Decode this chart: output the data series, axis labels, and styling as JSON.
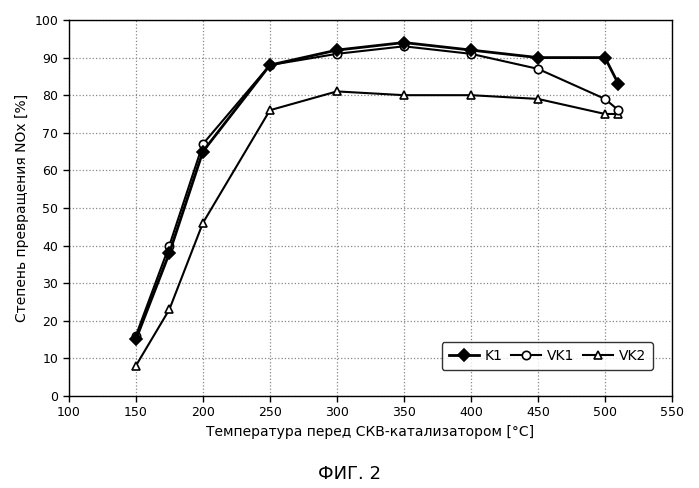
{
  "title": "ФИГ. 2",
  "xlabel": "Температура перед СКВ-катализатором [°C]",
  "ylabel": "Степень превращения NOх [%]",
  "xlim": [
    100,
    550
  ],
  "ylim": [
    0,
    100
  ],
  "xticks": [
    100,
    150,
    200,
    250,
    300,
    350,
    400,
    450,
    500,
    550
  ],
  "yticks": [
    0,
    10,
    20,
    30,
    40,
    50,
    60,
    70,
    80,
    90,
    100
  ],
  "series": [
    {
      "label": "K1",
      "x": [
        150,
        175,
        200,
        250,
        300,
        350,
        400,
        450,
        500,
        510
      ],
      "y": [
        15,
        38,
        65,
        88,
        92,
        94,
        92,
        90,
        90,
        83
      ],
      "color": "#000000",
      "marker": "D",
      "marker_size": 6,
      "linewidth": 2.0,
      "markerfacecolor": "#000000",
      "zorder": 3
    },
    {
      "label": "VK1",
      "x": [
        150,
        175,
        200,
        250,
        300,
        350,
        400,
        450,
        500,
        510
      ],
      "y": [
        16,
        40,
        67,
        88,
        91,
        93,
        91,
        87,
        79,
        76
      ],
      "color": "#000000",
      "marker": "o",
      "marker_size": 6,
      "linewidth": 1.5,
      "markerfacecolor": "#ffffff",
      "zorder": 2
    },
    {
      "label": "VK2",
      "x": [
        150,
        175,
        200,
        250,
        300,
        350,
        400,
        450,
        500,
        510
      ],
      "y": [
        8,
        23,
        46,
        76,
        81,
        80,
        80,
        79,
        75,
        75
      ],
      "color": "#000000",
      "marker": "^",
      "marker_size": 6,
      "linewidth": 1.5,
      "markerfacecolor": "#ffffff",
      "zorder": 1
    }
  ],
  "background_color": "#ffffff",
  "fig_width": 6.99,
  "fig_height": 4.88,
  "dpi": 100
}
